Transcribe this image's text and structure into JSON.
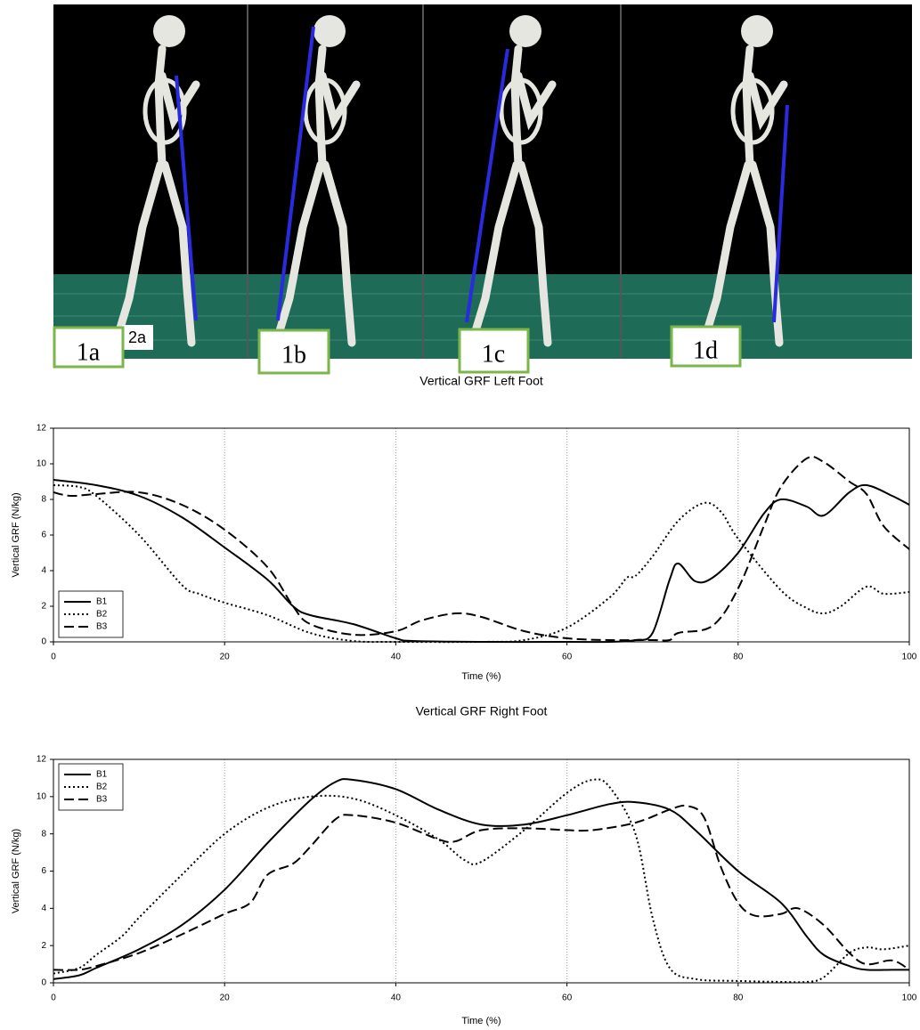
{
  "figure_labels": {
    "panels": [
      "1a",
      "1b",
      "1c",
      "1d"
    ],
    "inset": "2a"
  },
  "chart_data": [
    {
      "type": "line",
      "title": "Vertical GRF Left Foot",
      "x_label": "Time (%)",
      "y_label": "Vertical GRF (N/kg)",
      "xlim": [
        0,
        100
      ],
      "xticks": [
        0,
        20,
        40,
        60,
        80,
        100
      ],
      "ylim": [
        0,
        12
      ],
      "yticks": [
        0,
        2,
        4,
        6,
        8,
        10,
        12
      ],
      "grid": true,
      "legend": "lower left",
      "series": [
        {
          "name": "B1",
          "color": "#000000",
          "dash": "solid",
          "x": [
            0,
            5,
            10,
            15,
            20,
            25,
            28,
            30,
            35,
            40,
            42,
            50,
            60,
            65,
            68,
            70,
            72,
            73,
            75,
            77,
            80,
            83,
            85,
            88,
            90,
            93,
            95,
            98,
            100
          ],
          "values": [
            9.1,
            8.8,
            8.2,
            7.0,
            5.3,
            3.5,
            2.0,
            1.5,
            1.0,
            0.2,
            0.05,
            0,
            0,
            0,
            0.1,
            0.5,
            3.5,
            4.4,
            3.4,
            3.6,
            5.0,
            7.2,
            8.0,
            7.6,
            7.1,
            8.4,
            8.8,
            8.2,
            7.7
          ]
        },
        {
          "name": "B2",
          "color": "#000000",
          "dash": "dotted",
          "x": [
            0,
            3,
            5,
            10,
            15,
            17,
            20,
            25,
            30,
            35,
            40,
            50,
            55,
            60,
            65,
            67,
            68,
            70,
            73,
            76,
            78,
            80,
            85,
            88,
            90,
            92,
            95,
            97,
            100
          ],
          "values": [
            8.8,
            8.7,
            8.2,
            6.0,
            3.2,
            2.7,
            2.2,
            1.5,
            0.5,
            0.05,
            0,
            0,
            0.1,
            0.8,
            2.5,
            3.6,
            3.7,
            4.8,
            6.8,
            7.8,
            7.3,
            5.8,
            2.9,
            1.9,
            1.6,
            2.0,
            3.1,
            2.7,
            2.8
          ]
        },
        {
          "name": "B3",
          "color": "#000000",
          "dash": "dashed",
          "x": [
            0,
            2,
            5,
            10,
            15,
            20,
            25,
            28,
            30,
            35,
            40,
            43,
            47,
            50,
            55,
            60,
            65,
            70,
            72,
            73,
            77,
            80,
            83,
            85,
            88,
            90,
            93,
            95,
            97,
            100
          ],
          "values": [
            8.4,
            8.2,
            8.3,
            8.4,
            7.7,
            6.3,
            4.2,
            2.0,
            1.0,
            0.4,
            0.6,
            1.2,
            1.6,
            1.4,
            0.6,
            0.2,
            0.1,
            0.1,
            0.1,
            0.5,
            0.9,
            3.0,
            6.5,
            8.7,
            10.3,
            10.1,
            9.0,
            8.3,
            6.5,
            5.2
          ]
        }
      ]
    },
    {
      "type": "line",
      "title": "Vertical GRF Right Foot",
      "x_label": "Time (%)",
      "y_label": "Vertical GRF (N/kg)",
      "xlim": [
        0,
        100
      ],
      "xticks": [
        0,
        20,
        40,
        60,
        80,
        100
      ],
      "ylim": [
        0,
        12
      ],
      "yticks": [
        0,
        2,
        4,
        6,
        8,
        10,
        12
      ],
      "grid": true,
      "legend": "upper left",
      "series": [
        {
          "name": "B1",
          "color": "#000000",
          "dash": "solid",
          "x": [
            0,
            3,
            5,
            10,
            15,
            20,
            25,
            30,
            33,
            35,
            40,
            45,
            50,
            55,
            60,
            65,
            68,
            72,
            75,
            80,
            85,
            88,
            90,
            93,
            95,
            98,
            100
          ],
          "values": [
            0.2,
            0.4,
            0.8,
            1.8,
            3.1,
            5.0,
            7.5,
            9.8,
            10.8,
            10.9,
            10.4,
            9.3,
            8.5,
            8.5,
            9.0,
            9.6,
            9.7,
            9.3,
            8.2,
            6.0,
            4.3,
            2.5,
            1.5,
            0.9,
            0.7,
            0.7,
            0.7
          ]
        },
        {
          "name": "B2",
          "color": "#000000",
          "dash": "dotted",
          "x": [
            0,
            3,
            5,
            8,
            10,
            15,
            20,
            25,
            30,
            35,
            40,
            45,
            48,
            50,
            55,
            60,
            63,
            65,
            68,
            70,
            72,
            75,
            80,
            85,
            88,
            90,
            93,
            95,
            97,
            100
          ],
          "values": [
            0.5,
            0.8,
            1.5,
            2.5,
            3.5,
            5.8,
            8.0,
            9.4,
            10.0,
            9.9,
            9.0,
            7.7,
            6.6,
            6.5,
            8.2,
            10.2,
            10.9,
            10.5,
            8.0,
            3.5,
            0.8,
            0.2,
            0.1,
            0.05,
            0.05,
            0.3,
            1.6,
            1.9,
            1.8,
            2.0
          ]
        },
        {
          "name": "B3",
          "color": "#000000",
          "dash": "dashed",
          "x": [
            0,
            3,
            5,
            10,
            15,
            20,
            23,
            25,
            28,
            30,
            33,
            35,
            40,
            45,
            47,
            50,
            55,
            60,
            63,
            68,
            72,
            74,
            76,
            78,
            80,
            82,
            85,
            87,
            90,
            93,
            95,
            98,
            100
          ],
          "values": [
            0.7,
            0.7,
            0.9,
            1.6,
            2.6,
            3.7,
            4.3,
            5.8,
            6.4,
            7.3,
            8.8,
            9.0,
            8.6,
            7.7,
            7.6,
            8.2,
            8.3,
            8.2,
            8.2,
            8.6,
            9.3,
            9.5,
            8.9,
            6.2,
            4.3,
            3.6,
            3.7,
            4.0,
            3.1,
            1.6,
            1.0,
            1.2,
            0.7
          ]
        }
      ]
    }
  ]
}
